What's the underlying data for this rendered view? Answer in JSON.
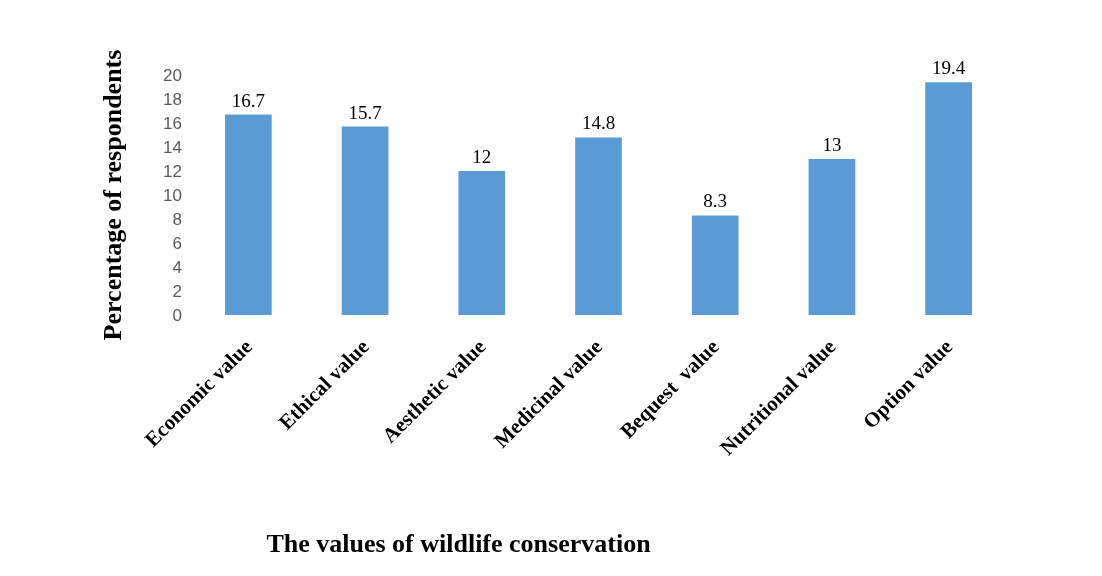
{
  "chart_data": {
    "type": "bar",
    "xlabel": "The values of wildlife conservation",
    "ylabel": "Percentage of respondents",
    "categories": [
      "Economic value",
      "Ethical value",
      "Aesthetic value",
      "Medicinal value",
      "Bequest  value",
      "Nutritional value",
      "Option value"
    ],
    "values": [
      16.7,
      15.7,
      12,
      14.8,
      8.3,
      13,
      19.4
    ],
    "color": "#5b9bd5",
    "ylim": [
      0,
      20
    ],
    "yticks": [
      0,
      2,
      4,
      6,
      8,
      10,
      12,
      14,
      16,
      18,
      20
    ],
    "grid": false,
    "data_labels": true
  }
}
